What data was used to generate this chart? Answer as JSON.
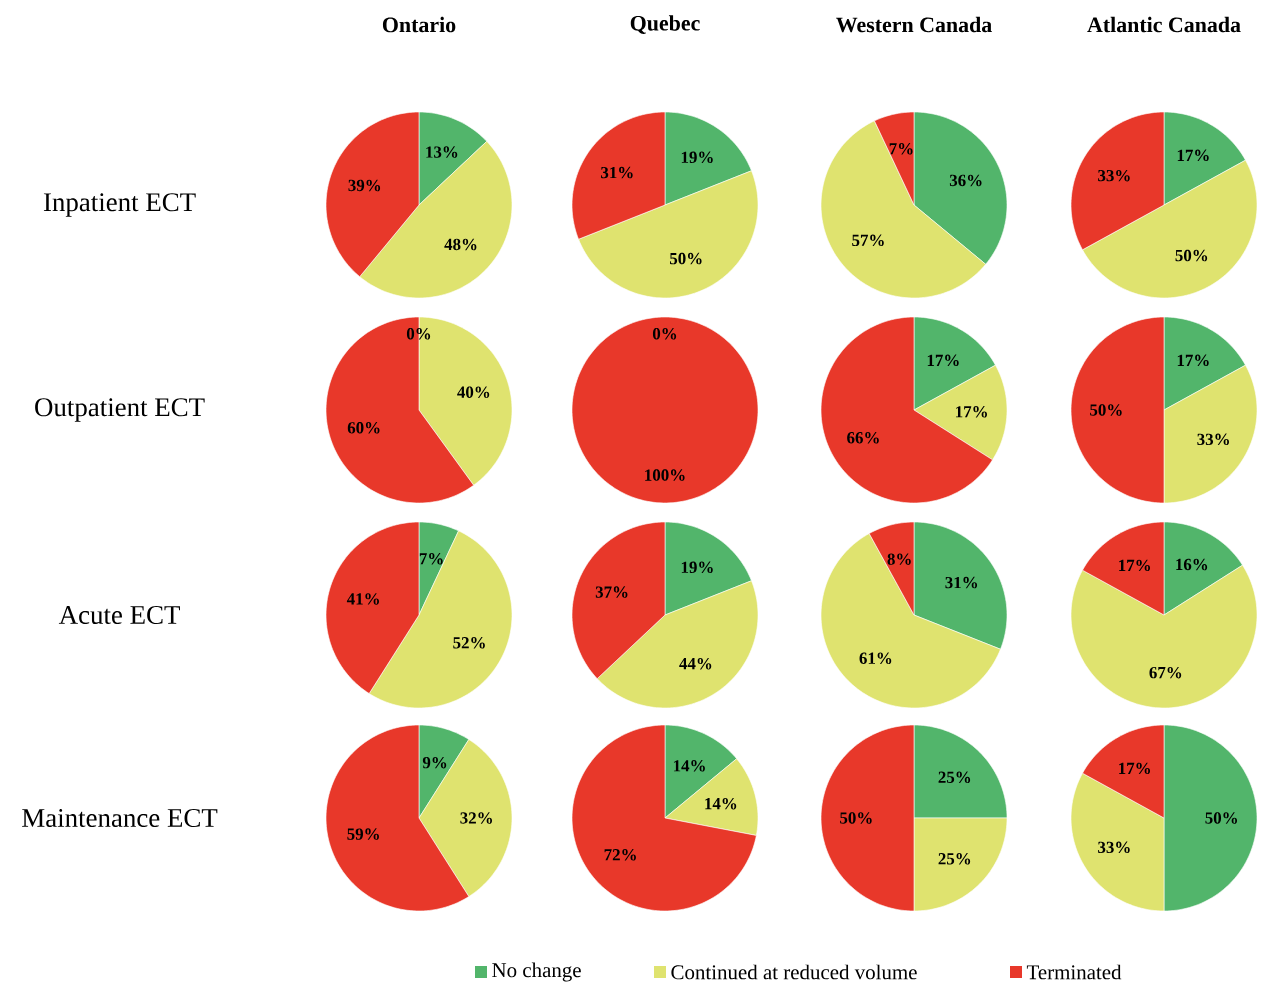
{
  "chart_data": [
    {
      "type": "pie",
      "title": "Ontario",
      "ylabel": "Inpatient ECT",
      "categories": [
        null,
        null,
        null
      ],
      "values": [
        13,
        48,
        39
      ],
      "value_labels": [
        "13%",
        "48%",
        "39%"
      ],
      "colors": [
        "#52b56b",
        "#dfe36f",
        "#e8382a"
      ]
    },
    {
      "type": "pie",
      "title": "Quebec",
      "categories": [
        null,
        null,
        null
      ],
      "values": [
        19,
        50,
        31
      ],
      "value_labels": [
        "19%",
        "50%",
        "31%"
      ],
      "colors": [
        "#52b56b",
        "#dfe36f",
        "#e8382a"
      ]
    },
    {
      "type": "pie",
      "title": "Western Canada",
      "categories": [
        null,
        null,
        null
      ],
      "values": [
        36,
        57,
        7
      ],
      "value_labels": [
        "36%",
        "57%",
        "7%"
      ],
      "colors": [
        "#52b56b",
        "#dfe36f",
        "#e8382a"
      ]
    },
    {
      "type": "pie",
      "title": "Atlantic Canada",
      "categories": [
        null,
        null,
        null
      ],
      "values": [
        17,
        50,
        33
      ],
      "value_labels": [
        "17%",
        "50%",
        "33%"
      ],
      "colors": [
        "#52b56b",
        "#dfe36f",
        "#e8382a"
      ]
    },
    {
      "type": "pie",
      "ylabel": "Outpatient ECT",
      "categories": [
        null,
        null,
        null
      ],
      "values": [
        0,
        40,
        60
      ],
      "value_labels": [
        "0%",
        "40%",
        "60%"
      ],
      "colors": [
        "#52b56b",
        "#dfe36f",
        "#e8382a"
      ]
    },
    {
      "type": "pie",
      "categories": [
        null,
        null,
        null
      ],
      "values": [
        0,
        0,
        100
      ],
      "value_labels": [
        "0%",
        null,
        "100%"
      ],
      "colors": [
        "#52b56b",
        "#dfe36f",
        "#e8382a"
      ]
    },
    {
      "type": "pie",
      "categories": [
        null,
        null,
        null
      ],
      "values": [
        17,
        17,
        66
      ],
      "value_labels": [
        "17%",
        "17%",
        "66%"
      ],
      "colors": [
        "#52b56b",
        "#dfe36f",
        "#e8382a"
      ]
    },
    {
      "type": "pie",
      "categories": [
        null,
        null,
        null
      ],
      "values": [
        17,
        33,
        50
      ],
      "value_labels": [
        "17%",
        "33%",
        "50%"
      ],
      "colors": [
        "#52b56b",
        "#dfe36f",
        "#e8382a"
      ]
    },
    {
      "type": "pie",
      "ylabel": "Acute ECT",
      "categories": [
        null,
        null,
        null
      ],
      "values": [
        7,
        52,
        41
      ],
      "value_labels": [
        "7%",
        "52%",
        "41%"
      ],
      "colors": [
        "#52b56b",
        "#dfe36f",
        "#e8382a"
      ]
    },
    {
      "type": "pie",
      "categories": [
        null,
        null,
        null
      ],
      "values": [
        19,
        44,
        37
      ],
      "value_labels": [
        "19%",
        "44%",
        "37%"
      ],
      "colors": [
        "#52b56b",
        "#dfe36f",
        "#e8382a"
      ]
    },
    {
      "type": "pie",
      "categories": [
        null,
        null,
        null
      ],
      "values": [
        31,
        61,
        8
      ],
      "value_labels": [
        "31%",
        "61%",
        "8%"
      ],
      "colors": [
        "#52b56b",
        "#dfe36f",
        "#e8382a"
      ]
    },
    {
      "type": "pie",
      "categories": [
        null,
        null,
        null
      ],
      "values": [
        16,
        67,
        17
      ],
      "value_labels": [
        "16%",
        "67%",
        "17%"
      ],
      "colors": [
        "#52b56b",
        "#dfe36f",
        "#e8382a"
      ]
    },
    {
      "type": "pie",
      "ylabel": "Maintenance ECT",
      "categories": [
        null,
        null,
        null
      ],
      "values": [
        9,
        32,
        59
      ],
      "value_labels": [
        "9%",
        "32%",
        "59%"
      ],
      "colors": [
        "#52b56b",
        "#dfe36f",
        "#e8382a"
      ]
    },
    {
      "type": "pie",
      "categories": [
        null,
        null,
        null
      ],
      "values": [
        14,
        14,
        72
      ],
      "value_labels": [
        "14%",
        "14%",
        "72%"
      ],
      "colors": [
        "#52b56b",
        "#dfe36f",
        "#e8382a"
      ]
    },
    {
      "type": "pie",
      "categories": [
        null,
        null,
        null
      ],
      "values": [
        25,
        25,
        50
      ],
      "value_labels": [
        "25%",
        "25%",
        "50%"
      ],
      "colors": [
        "#52b56b",
        "#dfe36f",
        "#e8382a"
      ]
    },
    {
      "type": "pie",
      "categories": [
        "No change",
        "Continued at reduced volume",
        "Terminated"
      ],
      "values": [
        50,
        33,
        17
      ],
      "value_labels": [
        "50%",
        "33%",
        "17%"
      ],
      "colors": [
        "#52b56b",
        "#dfe36f",
        "#e8382a"
      ],
      "legend": "bottom"
    }
  ]
}
